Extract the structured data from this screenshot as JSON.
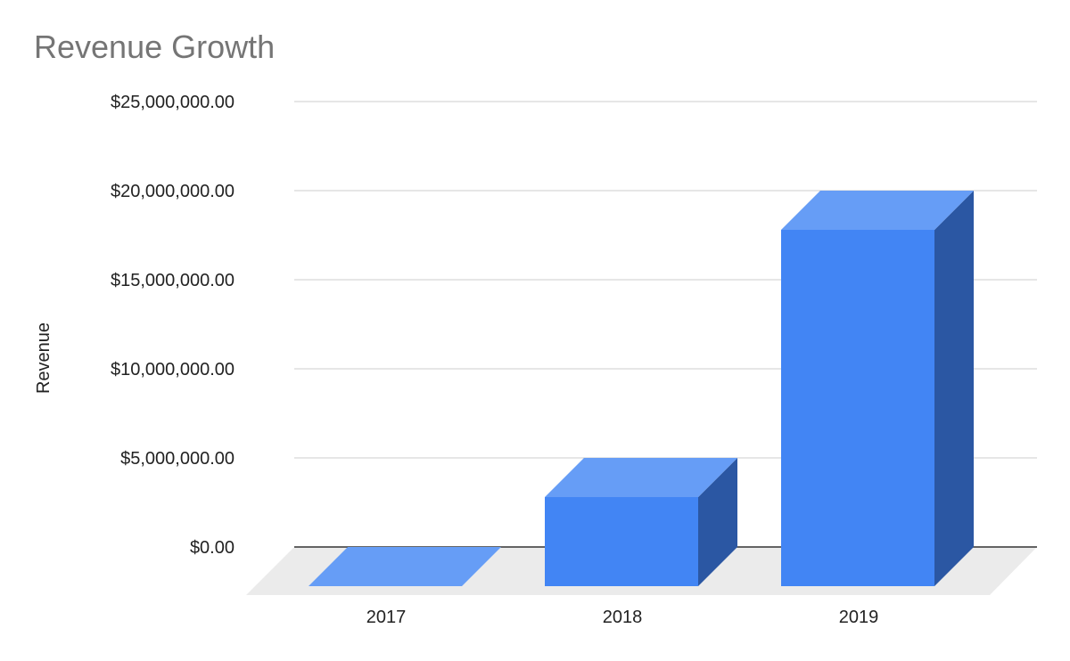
{
  "chart_data": {
    "type": "bar",
    "title": "Revenue Growth",
    "xlabel": "",
    "ylabel": "Revenue",
    "categories": [
      "2017",
      "2018",
      "2019"
    ],
    "values": [
      0,
      5000000,
      20000000
    ],
    "ylim": [
      0,
      25000000
    ],
    "yticks": [
      0,
      5000000,
      10000000,
      15000000,
      20000000,
      25000000
    ],
    "ytick_labels": [
      "$0.00",
      "$5,000,000.00",
      "$10,000,000.00",
      "$15,000,000.00",
      "$20,000,000.00",
      "$25,000,000.00"
    ],
    "grid": true,
    "style": "3d",
    "colors": {
      "bar_front": "#4285f4",
      "bar_top": "#669df6",
      "bar_side": "#2b57a3",
      "floor": "#ebebeb",
      "grid": "#cccccc",
      "baseline": "#333333"
    }
  }
}
